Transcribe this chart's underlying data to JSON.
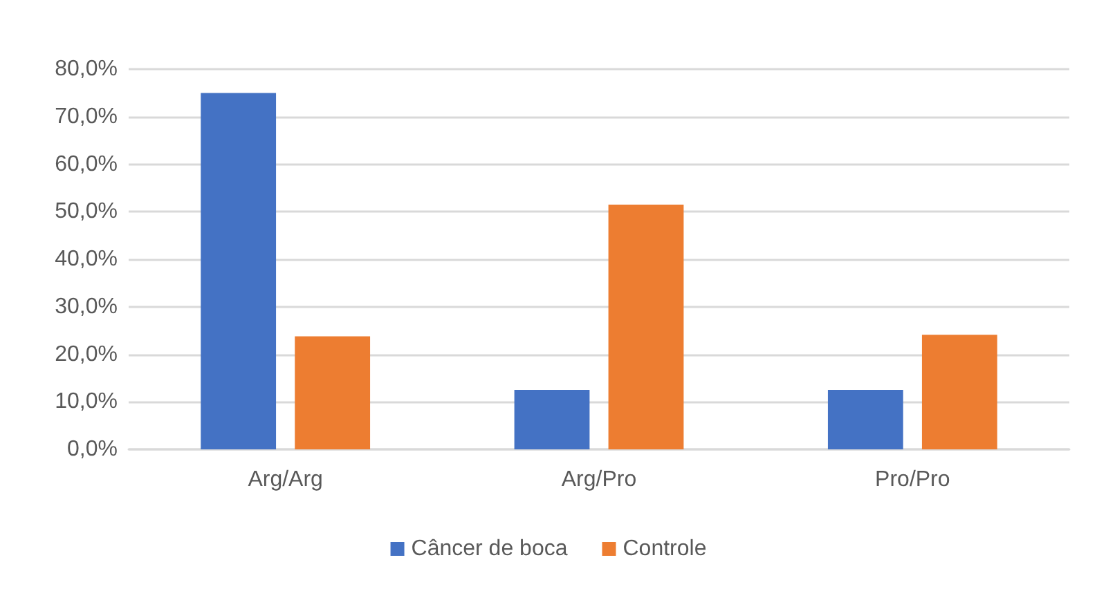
{
  "chart_data": {
    "type": "bar",
    "categories": [
      "Arg/Arg",
      "Arg/Pro",
      "Pro/Pro"
    ],
    "series": [
      {
        "name": "Câncer de boca",
        "color": "#4472c4",
        "values": [
          75,
          12.5,
          12.5
        ]
      },
      {
        "name": "Controle",
        "color": "#ed7d31",
        "values": [
          23.8,
          51.5,
          24.1
        ]
      }
    ],
    "ylim": [
      0,
      80
    ],
    "yticks": [
      {
        "value": 0,
        "label": "0,0%"
      },
      {
        "value": 10,
        "label": "10,0%"
      },
      {
        "value": 20,
        "label": "20,0%"
      },
      {
        "value": 30,
        "label": "30,0%"
      },
      {
        "value": 40,
        "label": "40,0%"
      },
      {
        "value": 50,
        "label": "50,0%"
      },
      {
        "value": 60,
        "label": "60,0%"
      },
      {
        "value": 70,
        "label": "70,0%"
      },
      {
        "value": 80,
        "label": "80,0%"
      }
    ],
    "grid": "y",
    "legend": "bottom"
  }
}
